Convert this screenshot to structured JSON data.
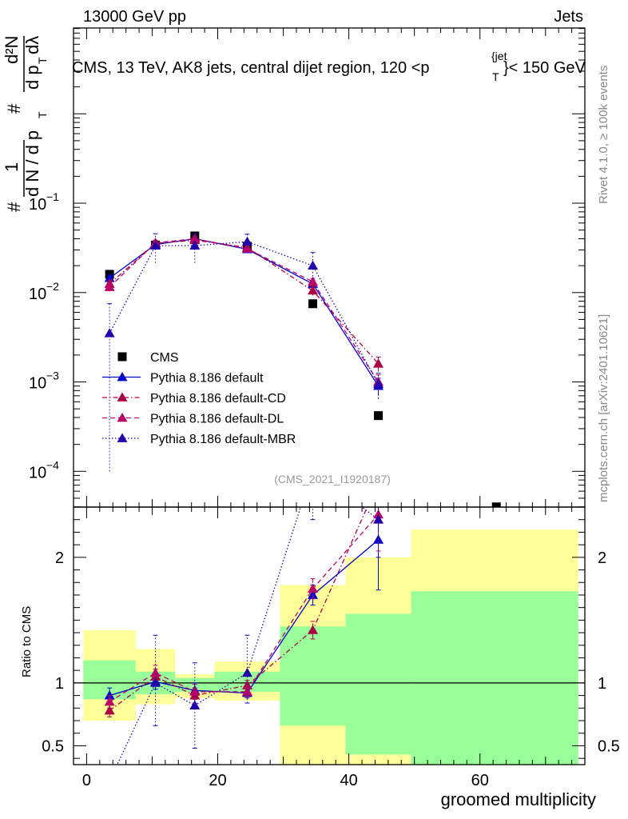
{
  "chart_data": {
    "type": "scatter",
    "header_left": "13000 GeV pp",
    "header_right": "Jets",
    "title": {
      "main": "CMS, 13 TeV, AK8 jets, central dijet region, 120 <p",
      "sup": "{jet",
      "sub": "T",
      "tail": "}< 150 GeV"
    },
    "side_label_top": "Rivet 4.1.0, ≥ 100k events",
    "side_label_bottom": "mcplots.cern.ch [arXiv:2401.10621]",
    "analysis_id": "(CMS_2021_I1920187)",
    "xlabel": "groomed multiplicity",
    "ylabel_main": {
      "hash1": "#",
      "num": "1",
      "den": "d N / d p",
      "den_sub": "T",
      "hash2": "#",
      "num2": "d²N",
      "den2": "d p",
      "den2_sub": "T",
      "den2_tail": "dλ"
    },
    "ylabel_ratio": "Ratio to CMS",
    "xlim": [
      -2,
      76
    ],
    "ylim_main_log10": [
      -4.4,
      0.96
    ],
    "ylim_ratio": [
      0.35,
      2.4
    ],
    "x_ticks": [
      0,
      20,
      40,
      60
    ],
    "x_tick_labels": [
      "0",
      "20",
      "40",
      "60"
    ],
    "main_ticks": [
      {
        "exp": -1,
        "label": "10",
        "sup": "−1"
      },
      {
        "exp": -2,
        "label": "10",
        "sup": "−2"
      },
      {
        "exp": -3,
        "label": "10",
        "sup": "−3"
      },
      {
        "exp": -4,
        "label": "10",
        "sup": "−4"
      }
    ],
    "ratio_ticks": [
      0.5,
      1,
      2
    ],
    "ratio_tick_labels": [
      "0.5",
      "1",
      "2"
    ],
    "bands": [
      {
        "x0": -0.5,
        "x1": 7.5,
        "y_lo": 0.7,
        "y_hi": 1.42,
        "g_lo": 0.87,
        "g_hi": 1.18
      },
      {
        "x0": 7.5,
        "x1": 13.5,
        "y_lo": 0.83,
        "y_hi": 1.27,
        "g_lo": 0.91,
        "g_hi": 1.09
      },
      {
        "x0": 13.5,
        "x1": 19.5,
        "y_lo": 0.88,
        "y_hi": 1.07,
        "g_lo": 0.93,
        "g_hi": 1.04
      },
      {
        "x0": 19.5,
        "x1": 29.5,
        "y_lo": 0.86,
        "y_hi": 1.17,
        "g_lo": 0.93,
        "g_hi": 1.09
      },
      {
        "x0": 29.5,
        "x1": 39.5,
        "y_lo": 0.35,
        "y_hi": 1.78,
        "g_lo": 0.66,
        "g_hi": 1.45
      },
      {
        "x0": 39.5,
        "x1": 49.5,
        "y_lo": 0.35,
        "y_hi": 2.0,
        "g_lo": 0.43,
        "g_hi": 1.55
      },
      {
        "x0": 49.5,
        "x1": 75,
        "y_lo": 0.35,
        "y_hi": 2.22,
        "g_lo": 0.35,
        "g_hi": 1.73
      }
    ],
    "series": [
      {
        "name": "CMS",
        "color": "#000000",
        "marker": "square",
        "line": "none",
        "x": [
          3.5,
          10.5,
          16.5,
          24.5,
          34.5,
          44.5,
          62.5
        ],
        "y": [
          0.016,
          0.034,
          0.043,
          0.033,
          0.0075,
          0.00042,
          4e-05
        ]
      },
      {
        "name": "Pythia 8.186 default",
        "color": "#0000cc",
        "marker": "triangle",
        "line": "solid",
        "x": [
          3.5,
          10.5,
          16.5,
          24.5,
          34.5,
          44.5
        ],
        "y": [
          0.0145,
          0.0345,
          0.04,
          0.0305,
          0.0125,
          0.0009
        ],
        "err_lo": [
          0.0012,
          0.0025,
          0.0025,
          0.002,
          0.0012,
          0.0002
        ],
        "err_hi": [
          0.0012,
          0.0025,
          0.0025,
          0.002,
          0.0012,
          0.0002
        ],
        "ratio": [
          0.9,
          1.01,
          0.94,
          0.92,
          1.7,
          2.14
        ],
        "ratio_lo": [
          0.84,
          0.95,
          0.88,
          0.88,
          1.62,
          1.74
        ],
        "ratio_hi": [
          0.96,
          1.07,
          1.0,
          0.96,
          1.78,
          2.45
        ]
      },
      {
        "name": "Pythia 8.186 default-CD",
        "color": "#aa0044",
        "marker": "triangle",
        "line": "dashdot",
        "x": [
          3.5,
          10.5,
          16.5,
          24.5,
          34.5,
          44.5
        ],
        "y": [
          0.0125,
          0.0355,
          0.0385,
          0.032,
          0.0105,
          0.0016
        ],
        "err_lo": [
          0.0012,
          0.0025,
          0.0025,
          0.002,
          0.0012,
          0.0003
        ],
        "err_hi": [
          0.0012,
          0.0025,
          0.0025,
          0.002,
          0.0012,
          0.0003
        ],
        "ratio": [
          0.78,
          1.05,
          0.9,
          0.98,
          1.42,
          2.6
        ],
        "ratio_lo": [
          0.73,
          0.99,
          0.84,
          0.94,
          1.35,
          2.3
        ],
        "ratio_hi": [
          0.83,
          1.11,
          0.96,
          1.02,
          1.49,
          2.9
        ]
      },
      {
        "name": "Pythia 8.186 default-DL",
        "color": "#bb0066",
        "marker": "triangle",
        "line": "dashed",
        "x": [
          3.5,
          10.5,
          16.5,
          24.5,
          34.5,
          44.5
        ],
        "y": [
          0.0115,
          0.036,
          0.04,
          0.031,
          0.0132,
          0.001
        ],
        "err_lo": [
          0.0012,
          0.0025,
          0.0025,
          0.002,
          0.0012,
          0.0002
        ],
        "err_hi": [
          0.0012,
          0.0025,
          0.0025,
          0.002,
          0.0012,
          0.0002
        ],
        "ratio": [
          0.85,
          1.08,
          0.93,
          0.93,
          1.75,
          2.34
        ],
        "ratio_lo": [
          0.8,
          1.02,
          0.87,
          0.89,
          1.67,
          2.05
        ],
        "ratio_hi": [
          0.9,
          1.14,
          0.99,
          0.97,
          1.83,
          2.6
        ]
      },
      {
        "name": "Pythia 8.186 default-MBR",
        "color": "#2200aa",
        "marker": "triangle",
        "line": "dotted",
        "x": [
          3.5,
          10.5,
          16.5,
          24.5,
          34.5,
          44.5
        ],
        "y": [
          0.0035,
          0.0335,
          0.0335,
          0.037,
          0.02,
          0.00095
        ],
        "err_lo": [
          0.0034,
          0.012,
          0.012,
          0.008,
          0.006,
          0.0003
        ],
        "err_hi": [
          0.004,
          0.012,
          0.012,
          0.008,
          0.008,
          0.0003
        ],
        "ratio": [
          0.22,
          1.0,
          0.82,
          1.08,
          2.7,
          2.3
        ],
        "ratio_lo": [
          0.1,
          0.66,
          0.48,
          0.84,
          2.3,
          2.0
        ],
        "ratio_hi": [
          0.35,
          1.38,
          1.16,
          1.38,
          3.1,
          2.6
        ]
      }
    ]
  }
}
